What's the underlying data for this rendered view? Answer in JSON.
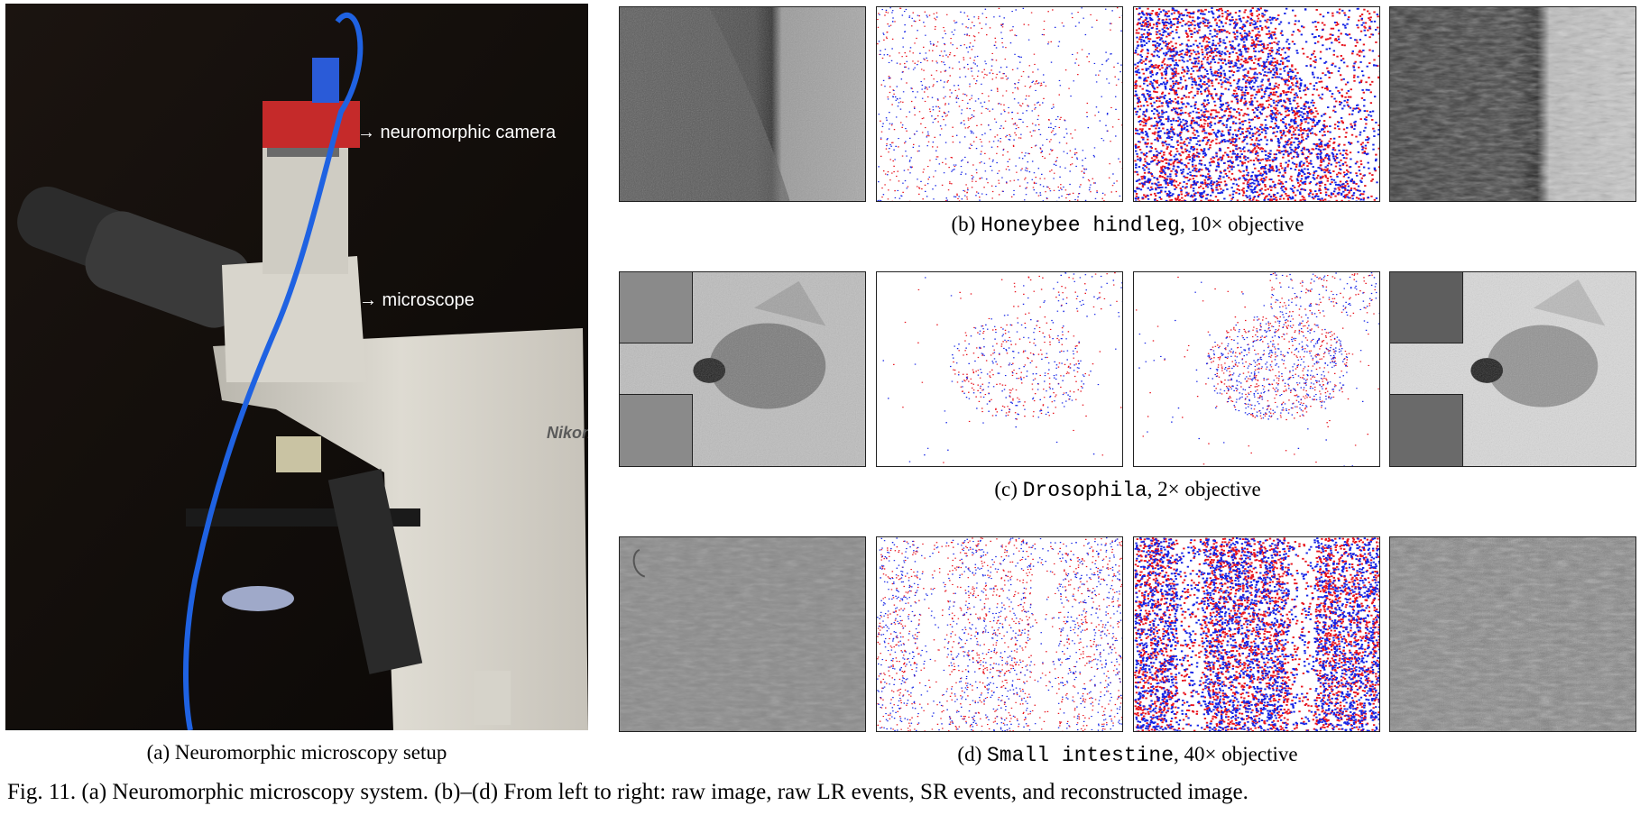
{
  "figure": {
    "caption": "Fig. 11.  (a) Neuromorphic microscopy system. (b)–(d) From left to right: raw image, raw LR events, SR events, and reconstructed image.",
    "setup": {
      "label_camera": "→ neuromorphic camera",
      "label_microscope": "→ microscope",
      "brand_text": "Nikon",
      "caption": "(a) Neuromorphic microscopy setup"
    },
    "rows": [
      {
        "caption_prefix": "(b) ",
        "specimen": "Honeybee hindleg",
        "caption_suffix": ", 10× objective"
      },
      {
        "caption_prefix": "(c) ",
        "specimen": "Drosophila",
        "caption_suffix": ", 2× objective"
      },
      {
        "caption_prefix": "(d) ",
        "specimen": "Small intestine",
        "caption_suffix": ", 40× objective"
      }
    ],
    "event_colors": {
      "positive": "#e8141e",
      "negative": "#1424e6"
    }
  }
}
